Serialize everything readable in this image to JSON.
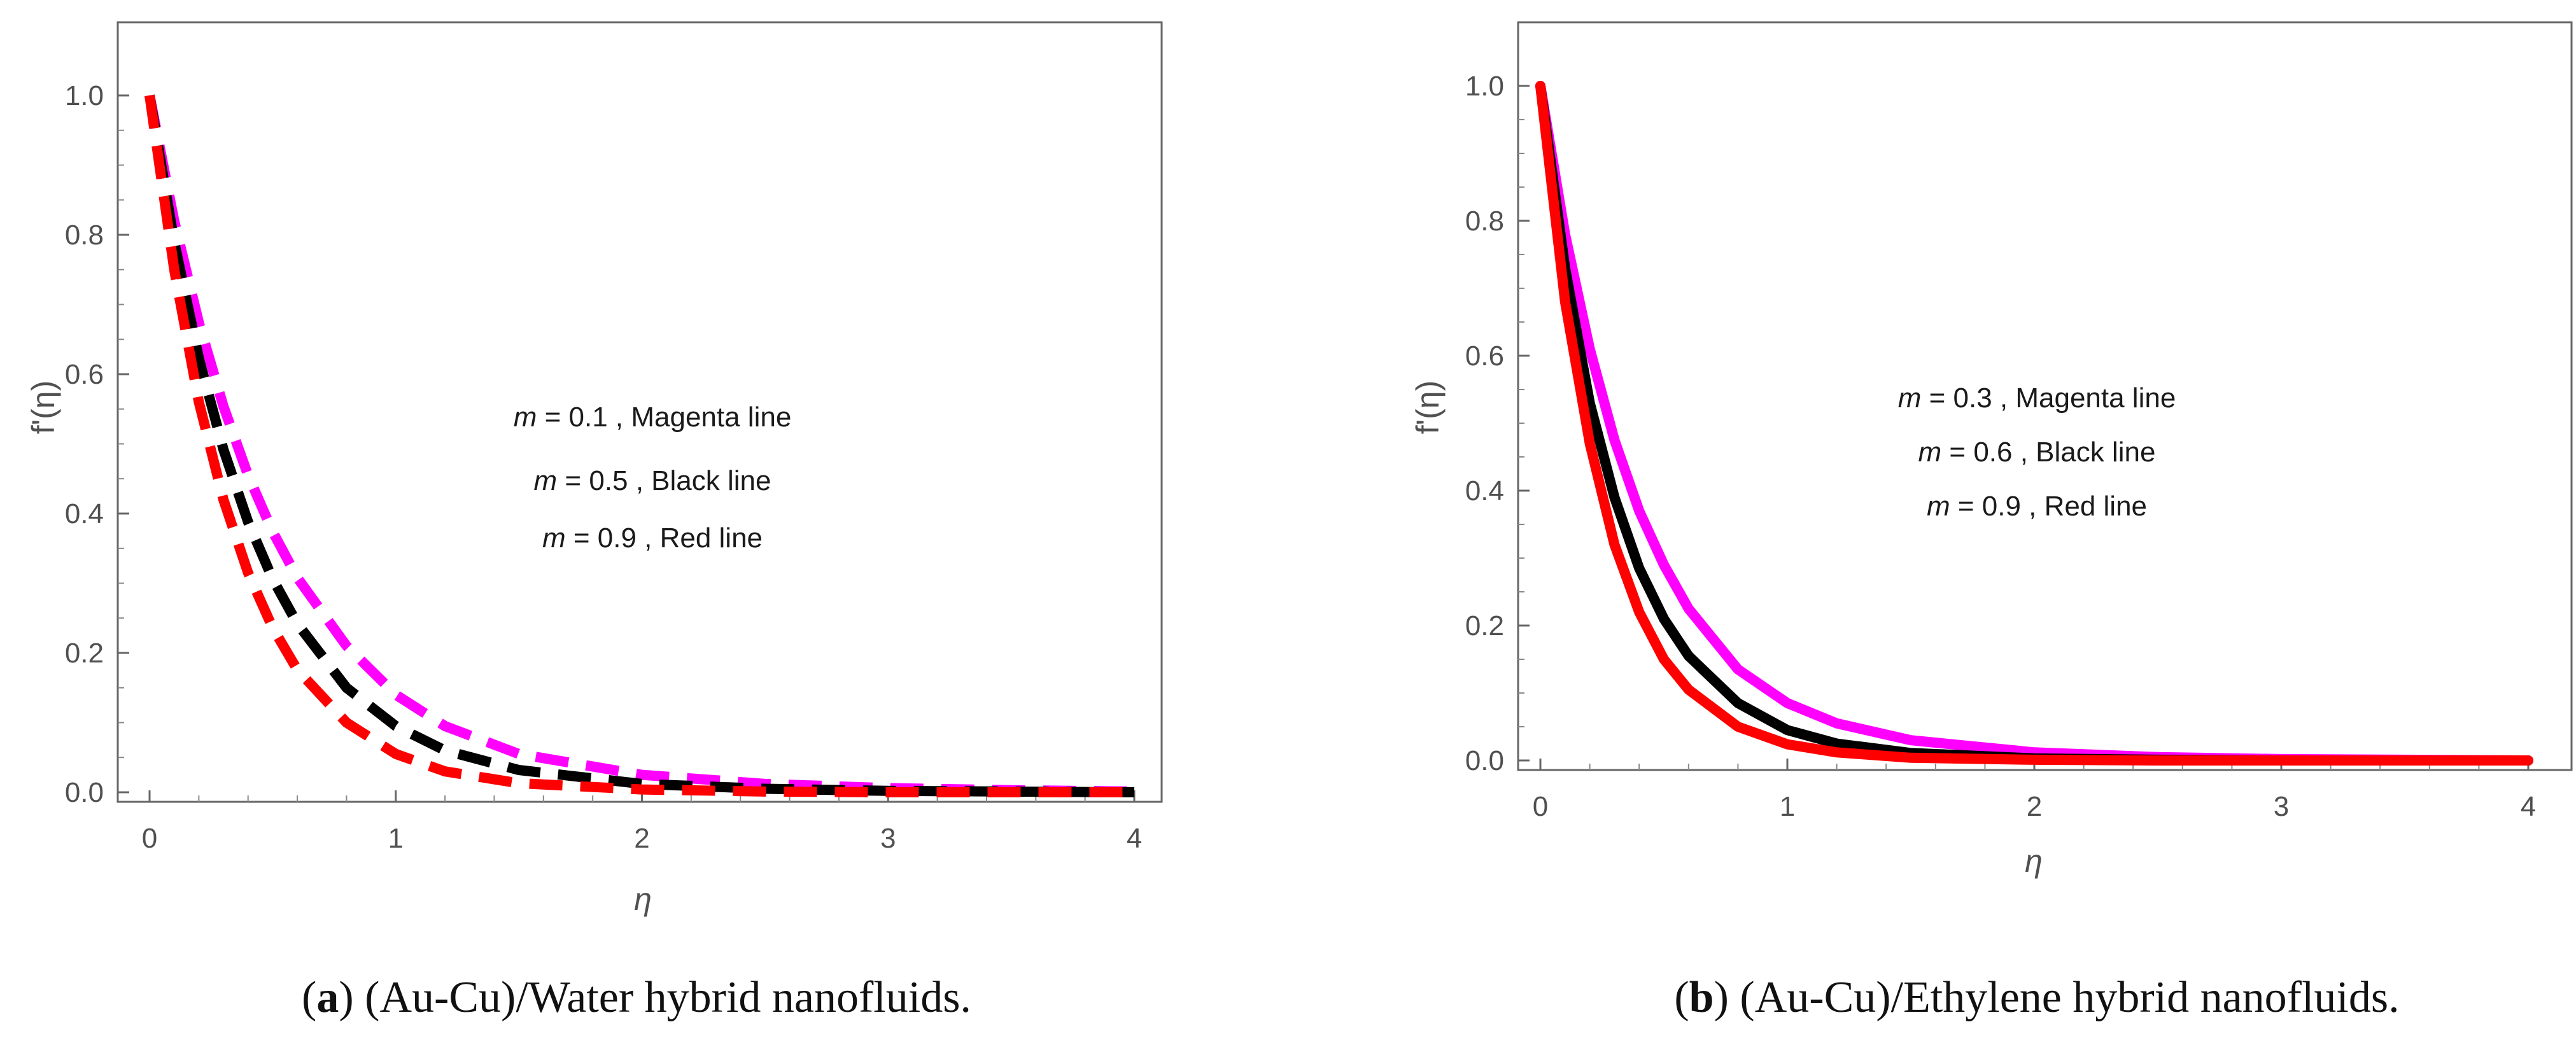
{
  "figure": {
    "captions": [
      {
        "letter": "a",
        "text": " (Au-Cu)/Water hybrid nanofluids."
      },
      {
        "letter": "b",
        "text": " (Au-Cu)/Ethylene hybrid nanofluids."
      }
    ]
  },
  "chart_data": [
    {
      "type": "line",
      "panel": "a",
      "xlabel": "η",
      "ylabel": "f'(η)",
      "xlim": [
        0,
        4
      ],
      "ylim": [
        0,
        1.05
      ],
      "xticks": [
        "0",
        "1",
        "2",
        "3",
        "4"
      ],
      "yticks": [
        "0.0",
        "0.2",
        "0.4",
        "0.6",
        "0.8",
        "1.0"
      ],
      "line_style": "dashed",
      "annotations": [
        {
          "param": "m",
          "text": " = 0.1 , Magenta  line"
        },
        {
          "param": "m",
          "text": " = 0.5 , Black line"
        },
        {
          "param": "m",
          "text": " = 0.9 , Red  line"
        }
      ],
      "series": [
        {
          "name": "m = 0.1",
          "color": "#ff00ff",
          "x": [
            0,
            0.1,
            0.2,
            0.3,
            0.4,
            0.5,
            0.6,
            0.8,
            1.0,
            1.2,
            1.5,
            2.0,
            2.5,
            3.0,
            3.5,
            4.0
          ],
          "y": [
            1.0,
            0.82,
            0.674,
            0.554,
            0.455,
            0.374,
            0.308,
            0.21,
            0.14,
            0.095,
            0.055,
            0.025,
            0.012,
            0.006,
            0.003,
            0.001
          ]
        },
        {
          "name": "m = 0.5",
          "color": "#000000",
          "x": [
            0,
            0.1,
            0.2,
            0.3,
            0.4,
            0.5,
            0.6,
            0.8,
            1.0,
            1.2,
            1.5,
            2.0,
            2.5,
            3.0,
            3.5,
            4.0
          ],
          "y": [
            1.0,
            0.79,
            0.623,
            0.492,
            0.388,
            0.306,
            0.242,
            0.15,
            0.095,
            0.06,
            0.032,
            0.012,
            0.005,
            0.002,
            0.001,
            0.0
          ]
        },
        {
          "name": "m = 0.9",
          "color": "#ff0000",
          "x": [
            0,
            0.1,
            0.2,
            0.3,
            0.4,
            0.5,
            0.6,
            0.8,
            1.0,
            1.2,
            1.5,
            2.0,
            2.5,
            3.0,
            3.5,
            4.0
          ],
          "y": [
            1.0,
            0.75,
            0.56,
            0.42,
            0.315,
            0.236,
            0.176,
            0.1,
            0.055,
            0.03,
            0.013,
            0.004,
            0.001,
            0.0,
            0.0,
            0.0
          ]
        }
      ]
    },
    {
      "type": "line",
      "panel": "b",
      "xlabel": "η",
      "ylabel": "f'(η)",
      "xlim": [
        0,
        4
      ],
      "ylim": [
        0,
        1.05
      ],
      "xticks": [
        "0",
        "1",
        "2",
        "3",
        "4"
      ],
      "yticks": [
        "0.0",
        "0.2",
        "0.4",
        "0.6",
        "0.8",
        "1.0"
      ],
      "line_style": "solid",
      "annotations": [
        {
          "param": "m",
          "text": " = 0.3 , Magenta  line"
        },
        {
          "param": "m",
          "text": " = 0.6 , Black line"
        },
        {
          "param": "m",
          "text": " = 0.9 , Red  line"
        }
      ],
      "series": [
        {
          "name": "m = 0.3",
          "color": "#ff00ff",
          "x": [
            0,
            0.1,
            0.2,
            0.3,
            0.4,
            0.5,
            0.6,
            0.8,
            1.0,
            1.2,
            1.5,
            2.0,
            2.5,
            3.0,
            3.5,
            4.0
          ],
          "y": [
            1.0,
            0.78,
            0.61,
            0.475,
            0.37,
            0.29,
            0.225,
            0.135,
            0.085,
            0.055,
            0.03,
            0.012,
            0.005,
            0.002,
            0.001,
            0.0
          ]
        },
        {
          "name": "m = 0.6",
          "color": "#000000",
          "x": [
            0,
            0.1,
            0.2,
            0.3,
            0.4,
            0.5,
            0.6,
            0.8,
            1.0,
            1.2,
            1.5,
            2.0,
            2.5,
            3.0,
            3.5,
            4.0
          ],
          "y": [
            1.0,
            0.73,
            0.53,
            0.39,
            0.285,
            0.21,
            0.155,
            0.085,
            0.045,
            0.025,
            0.011,
            0.003,
            0.001,
            0.0,
            0.0,
            0.0
          ]
        },
        {
          "name": "m = 0.9",
          "color": "#ff0000",
          "x": [
            0,
            0.1,
            0.2,
            0.3,
            0.4,
            0.5,
            0.6,
            0.8,
            1.0,
            1.2,
            1.5,
            2.0,
            2.5,
            3.0,
            3.5,
            4.0
          ],
          "y": [
            1.0,
            0.68,
            0.47,
            0.32,
            0.22,
            0.15,
            0.105,
            0.05,
            0.024,
            0.012,
            0.004,
            0.001,
            0.0,
            0.0,
            0.0,
            0.0
          ]
        }
      ]
    }
  ]
}
